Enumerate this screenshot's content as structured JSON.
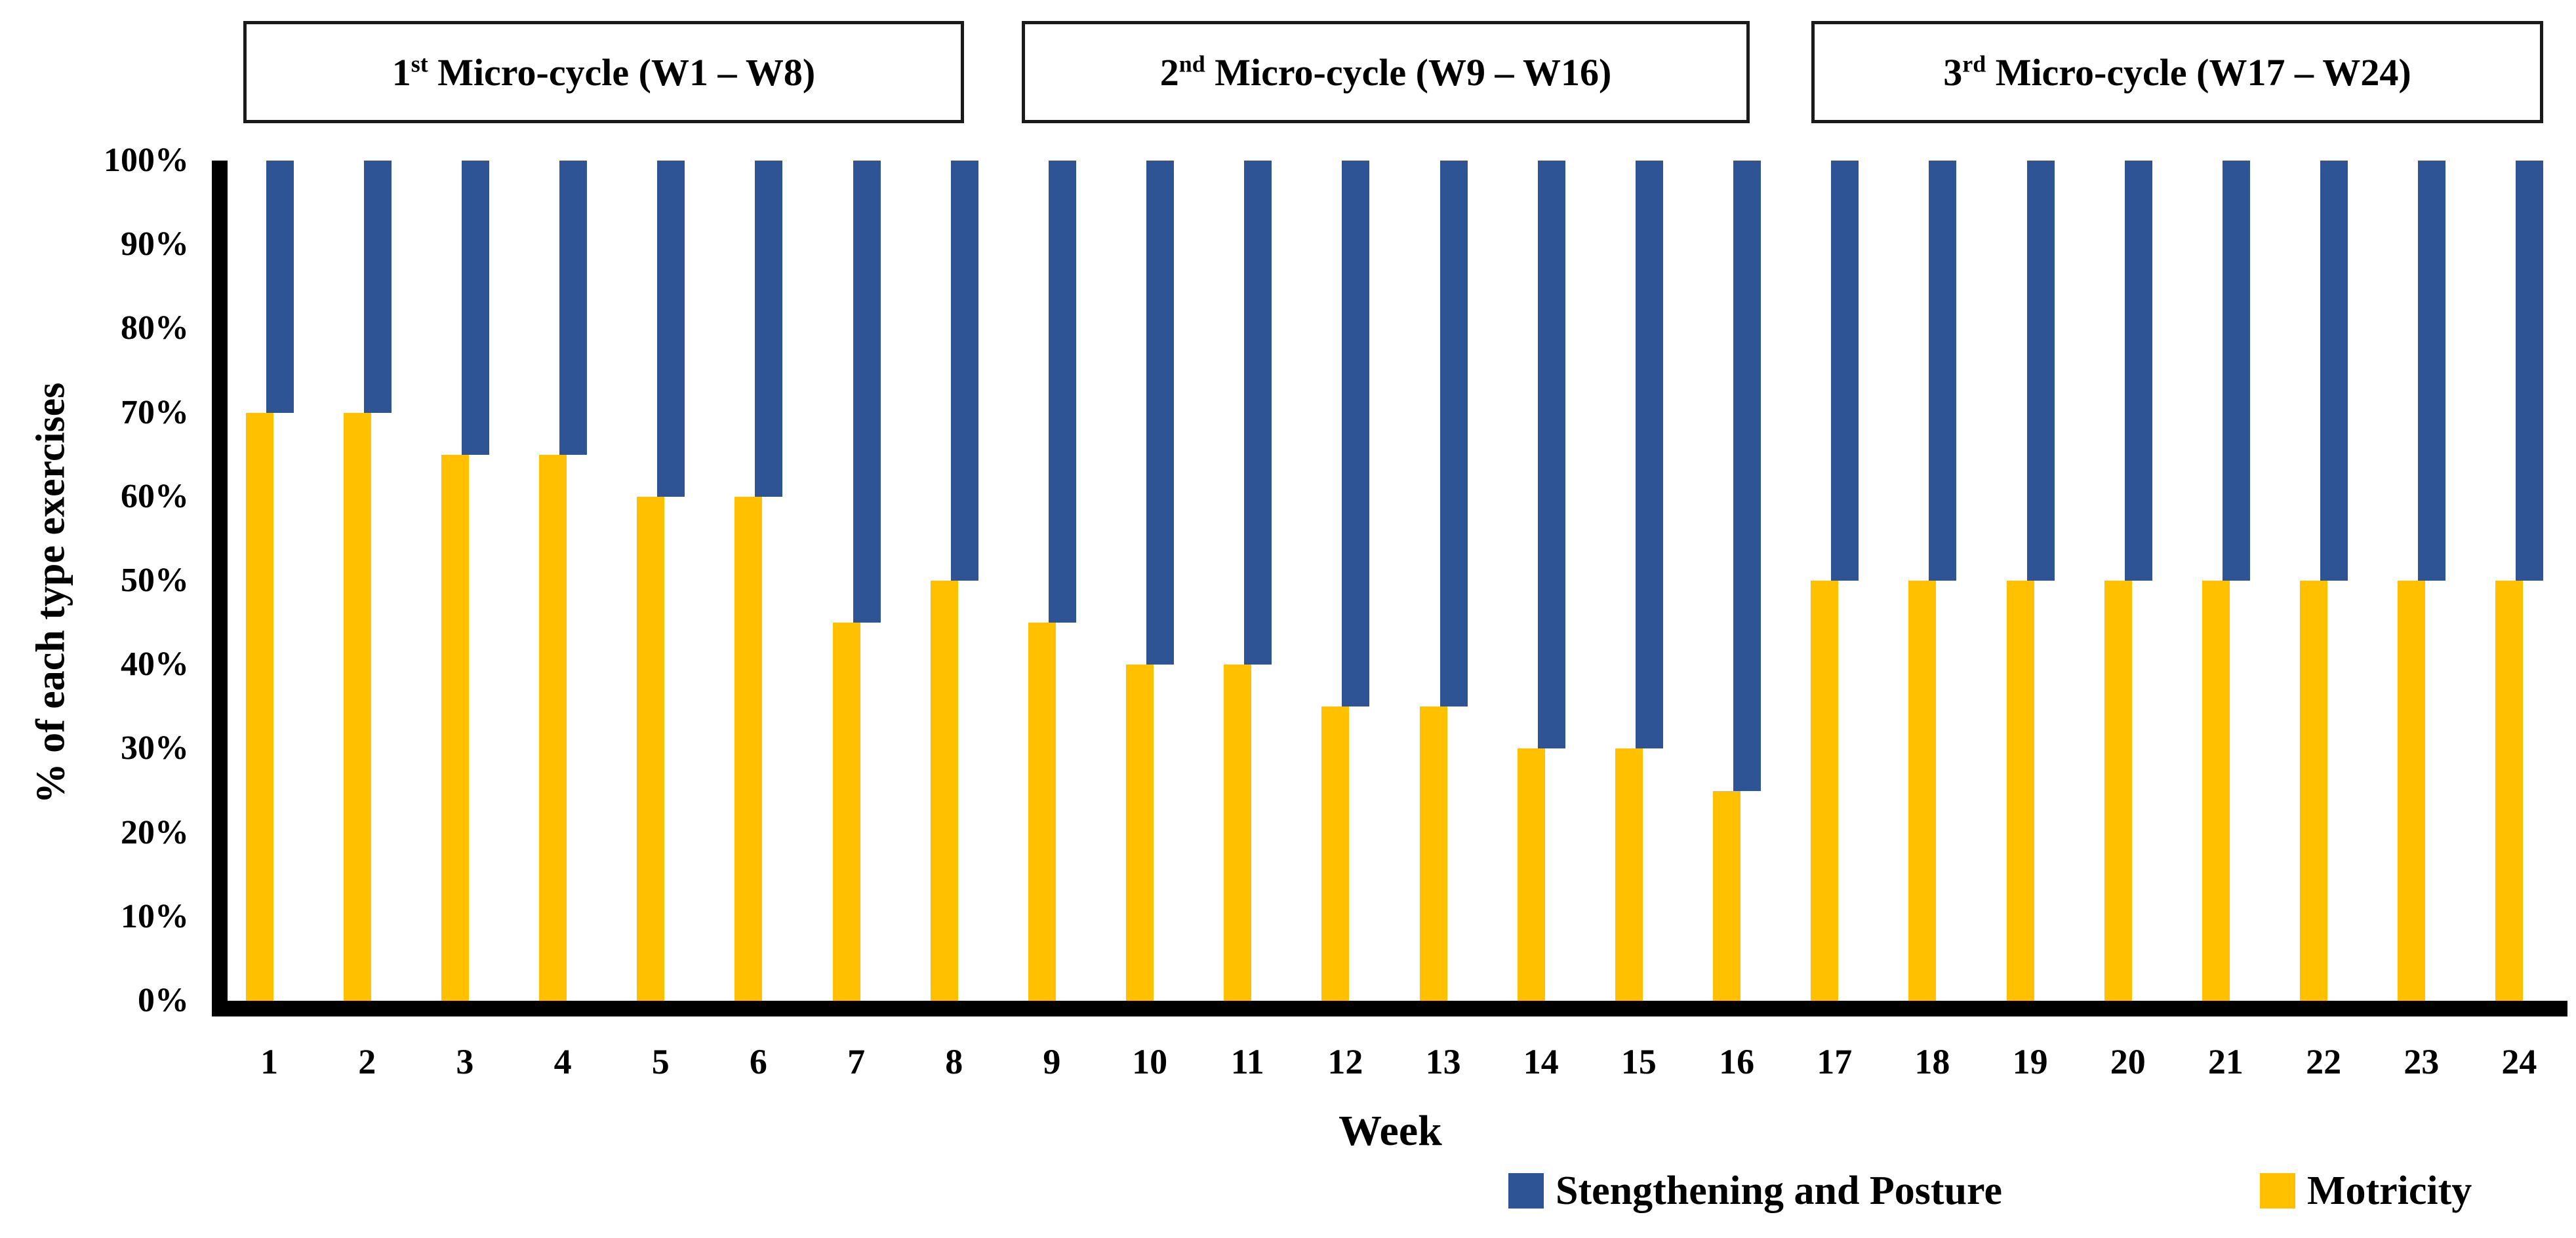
{
  "header": {
    "boxes": [
      {
        "number": "1",
        "ordinal": "st",
        "rest": " Micro-cycle (W1 – W8)"
      },
      {
        "number": "2",
        "ordinal": "nd",
        "rest": " Micro-cycle (W9 – W16)"
      },
      {
        "number": "3",
        "ordinal": "rd",
        "rest": " Micro-cycle (W17 – W24)"
      }
    ]
  },
  "y_axis": {
    "title": "% of each type exercises",
    "ticks": [
      "100%",
      "90%",
      "80%",
      "70%",
      "60%",
      "50%",
      "40%",
      "30%",
      "20%",
      "10%",
      "0%"
    ]
  },
  "x_axis": {
    "title": "Week"
  },
  "legend": [
    {
      "label": "Stengthening and Posture",
      "color": "#2E5496"
    },
    {
      "label": "Motricity",
      "color": "#FFC000"
    }
  ],
  "chart_data": {
    "type": "bar",
    "subtype": "complementary-stacked-columns-with-offset",
    "title": "",
    "xlabel": "Week",
    "ylabel": "% of each type exercises",
    "ylim": [
      0,
      100
    ],
    "y_tick_step": 10,
    "grid": false,
    "legend_position": "bottom-right",
    "categories": [
      "1",
      "2",
      "3",
      "4",
      "5",
      "6",
      "7",
      "8",
      "9",
      "10",
      "11",
      "12",
      "13",
      "14",
      "15",
      "16",
      "17",
      "18",
      "19",
      "20",
      "21",
      "22",
      "23",
      "24"
    ],
    "series": [
      {
        "name": "Stengthening and Posture",
        "color": "#2E5496",
        "span": "from (100 - value) up to 100%",
        "values": [
          30,
          30,
          35,
          35,
          40,
          40,
          55,
          50,
          55,
          60,
          60,
          65,
          65,
          70,
          70,
          75,
          50,
          50,
          50,
          50,
          50,
          50,
          50,
          50
        ]
      },
      {
        "name": "Motricity",
        "color": "#FFC000",
        "span": "from 0 up to value",
        "values": [
          70,
          70,
          65,
          65,
          60,
          60,
          45,
          50,
          45,
          40,
          40,
          35,
          35,
          30,
          30,
          25,
          50,
          50,
          50,
          50,
          50,
          50,
          50,
          50
        ]
      }
    ],
    "annotations": [
      "1st Micro-cycle (W1 – W8)",
      "2nd Micro-cycle (W9 – W16)",
      "3rd Micro-cycle (W17 – W24)"
    ]
  }
}
